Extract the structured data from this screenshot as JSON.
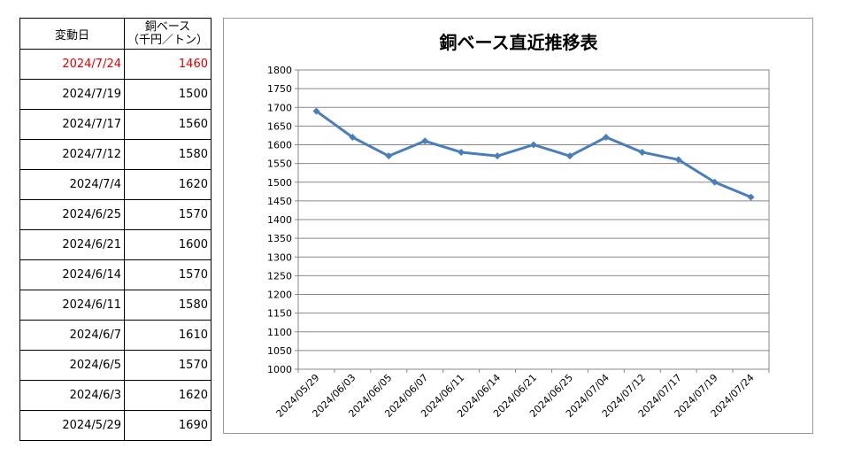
{
  "table": {
    "header": {
      "date": "変動日",
      "value_line1": "銅ベース",
      "value_line2": "（千円／トン）"
    },
    "rows": [
      {
        "date": "2024/7/24",
        "value": "1460"
      },
      {
        "date": "2024/7/19",
        "value": "1500"
      },
      {
        "date": "2024/7/17",
        "value": "1560"
      },
      {
        "date": "2024/7/12",
        "value": "1580"
      },
      {
        "date": "2024/7/4",
        "value": "1620"
      },
      {
        "date": "2024/6/25",
        "value": "1570"
      },
      {
        "date": "2024/6/21",
        "value": "1600"
      },
      {
        "date": "2024/6/14",
        "value": "1570"
      },
      {
        "date": "2024/6/11",
        "value": "1580"
      },
      {
        "date": "2024/6/7",
        "value": "1610"
      },
      {
        "date": "2024/6/5",
        "value": "1570"
      },
      {
        "date": "2024/6/3",
        "value": "1620"
      },
      {
        "date": "2024/5/29",
        "value": "1690"
      }
    ],
    "highlight_color": "#e00000"
  },
  "chart_data": {
    "type": "line",
    "title": "銅ベース直近推移表",
    "xlabel": "",
    "ylabel": "",
    "categories": [
      "2024/05/29",
      "2024/06/03",
      "2024/06/05",
      "2024/06/07",
      "2024/06/11",
      "2024/06/14",
      "2024/06/21",
      "2024/06/25",
      "2024/07/04",
      "2024/07/12",
      "2024/07/17",
      "2024/07/19",
      "2024/07/24"
    ],
    "values": [
      1690,
      1620,
      1570,
      1610,
      1580,
      1570,
      1600,
      1570,
      1620,
      1580,
      1560,
      1500,
      1460
    ],
    "ylim": [
      1000,
      1800
    ],
    "yticks": [
      1000,
      1050,
      1100,
      1150,
      1200,
      1250,
      1300,
      1350,
      1400,
      1450,
      1500,
      1550,
      1600,
      1650,
      1700,
      1750,
      1800
    ],
    "grid": true,
    "line_color": "#4a7ebb"
  }
}
